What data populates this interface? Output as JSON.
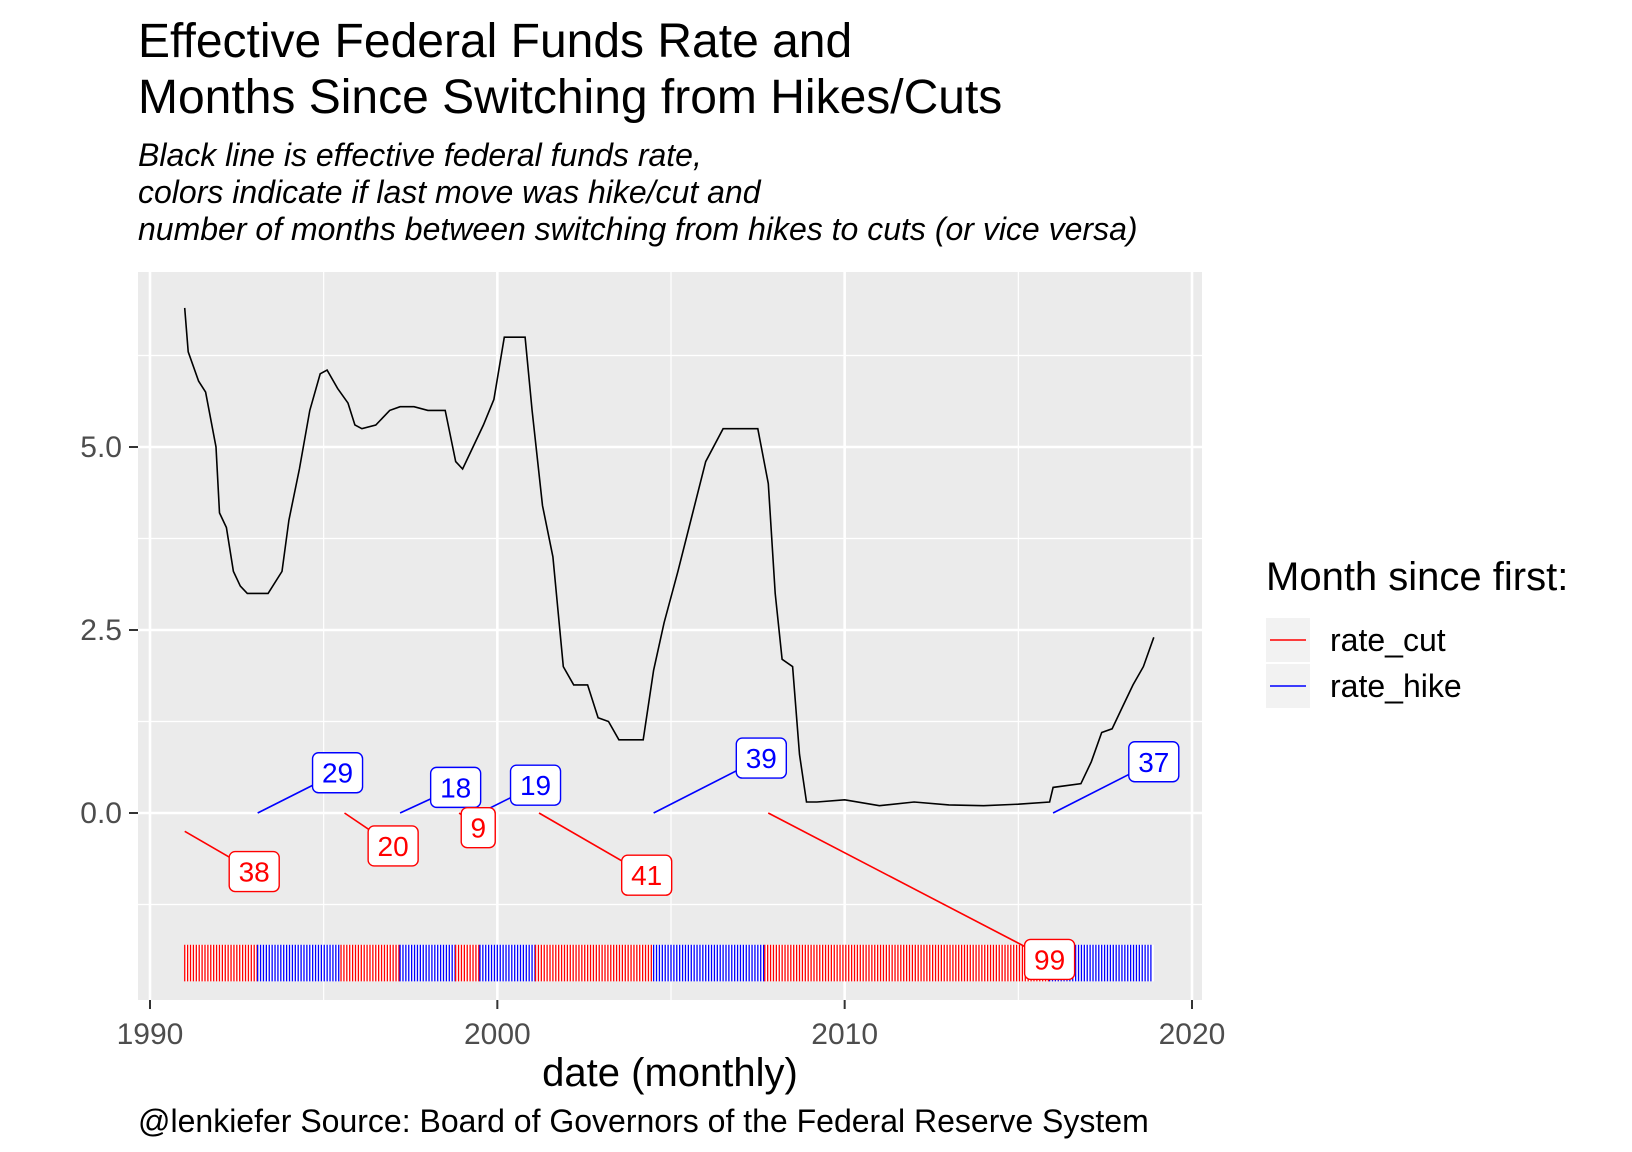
{
  "title_line1": "Effective Federal Funds Rate and",
  "title_line2": "Months Since Switching from Hikes/Cuts",
  "subtitle_line1": "Black line is effective federal funds rate,",
  "subtitle_line2": "colors indicate if last move was hike/cut and",
  "subtitle_line3": "number of months between switching from hikes to cuts (or vice versa)",
  "caption": "@lenkiefer Source: Board of Governors of the Federal Reserve System",
  "colors": {
    "panel": "#ebebeb",
    "grid": "#ffffff",
    "rate_line": "#000000",
    "rate_cut": "#ff0000",
    "rate_hike": "#0000ff"
  },
  "chart_data": {
    "type": "line",
    "xlabel": "date (monthly)",
    "ylabel": "",
    "xlim": [
      1990.0,
      2020.0
    ],
    "ylim": [
      -2.5,
      7.3
    ],
    "x_ticks": [
      1990,
      2000,
      2010,
      2020
    ],
    "x_tick_labels": [
      "1990",
      "2000",
      "2010",
      "2020"
    ],
    "y_ticks": [
      0.0,
      2.5,
      5.0
    ],
    "y_tick_labels": [
      "0.0",
      "2.5",
      "5.0"
    ],
    "grid": true,
    "legend": {
      "title": "Month since first:",
      "placement": "right",
      "entries": [
        {
          "label": "rate_cut",
          "color": "#ff0000"
        },
        {
          "label": "rate_hike",
          "color": "#0000ff"
        }
      ]
    },
    "series": [
      {
        "color": "#000000",
        "x": [
          1991.0,
          1991.1,
          1991.4,
          1991.6,
          1991.9,
          1992.0,
          1992.2,
          1992.4,
          1992.6,
          1992.8,
          1993.0,
          1993.4,
          1993.8,
          1994.0,
          1994.3,
          1994.6,
          1994.9,
          1995.1,
          1995.4,
          1995.7,
          1995.9,
          1996.1,
          1996.5,
          1996.9,
          1997.2,
          1997.6,
          1998.0,
          1998.5,
          1998.8,
          1999.0,
          1999.3,
          1999.6,
          1999.9,
          2000.2,
          2000.5,
          2000.8,
          2001.0,
          2001.3,
          2001.6,
          2001.9,
          2002.2,
          2002.6,
          2002.9,
          2003.2,
          2003.5,
          2003.8,
          2004.2,
          2004.5,
          2004.8,
          2005.2,
          2005.6,
          2006.0,
          2006.5,
          2007.0,
          2007.5,
          2007.8,
          2008.0,
          2008.2,
          2008.5,
          2008.7,
          2008.9,
          2009.2,
          2010.0,
          2011.0,
          2012.0,
          2013.0,
          2014.0,
          2015.0,
          2015.9,
          2016.0,
          2016.8,
          2017.1,
          2017.4,
          2017.7,
          2018.0,
          2018.3,
          2018.6,
          2018.9
        ],
        "values": [
          6.9,
          6.3,
          5.9,
          5.75,
          5.0,
          4.1,
          3.9,
          3.3,
          3.1,
          3.0,
          3.0,
          3.0,
          3.3,
          4.0,
          4.7,
          5.5,
          6.0,
          6.05,
          5.8,
          5.6,
          5.3,
          5.25,
          5.3,
          5.5,
          5.55,
          5.55,
          5.5,
          5.5,
          4.8,
          4.7,
          5.0,
          5.3,
          5.65,
          6.5,
          6.5,
          6.5,
          5.5,
          4.2,
          3.5,
          2.0,
          1.75,
          1.75,
          1.3,
          1.25,
          1.0,
          1.0,
          1.0,
          1.95,
          2.6,
          3.3,
          4.05,
          4.8,
          5.25,
          5.25,
          5.25,
          4.5,
          3.0,
          2.1,
          2.0,
          0.8,
          0.15,
          0.15,
          0.18,
          0.1,
          0.15,
          0.11,
          0.1,
          0.12,
          0.15,
          0.35,
          0.4,
          0.7,
          1.1,
          1.15,
          1.45,
          1.75,
          2.0,
          2.4
        ]
      }
    ],
    "regimes": [
      {
        "type": "rate_cut",
        "start": 1991.0,
        "end": 1993.1,
        "months": 38
      },
      {
        "type": "rate_hike",
        "start": 1993.1,
        "end": 1995.5,
        "months": 29
      },
      {
        "type": "rate_cut",
        "start": 1995.5,
        "end": 1997.2,
        "months": 20
      },
      {
        "type": "rate_hike",
        "start": 1997.2,
        "end": 1998.8,
        "months": 18
      },
      {
        "type": "rate_cut",
        "start": 1998.8,
        "end": 1999.5,
        "months": 9
      },
      {
        "type": "rate_hike",
        "start": 1999.5,
        "end": 2001.1,
        "months": 19
      },
      {
        "type": "rate_cut",
        "start": 2001.1,
        "end": 2004.5,
        "months": 41
      },
      {
        "type": "rate_hike",
        "start": 2004.5,
        "end": 2007.7,
        "months": 39
      },
      {
        "type": "rate_cut",
        "start": 2007.7,
        "end": 2015.9,
        "months": 99
      },
      {
        "type": "rate_hike",
        "start": 2015.9,
        "end": 2018.9,
        "months": 37
      }
    ],
    "annotations": [
      {
        "text": "38",
        "type": "rate_cut",
        "x": 1993.0,
        "y": -0.8,
        "ax": 1991.0,
        "ay": -0.25
      },
      {
        "text": "29",
        "type": "rate_hike",
        "x": 1995.4,
        "y": 0.55,
        "ax": 1993.1,
        "ay": 0.0
      },
      {
        "text": "20",
        "type": "rate_cut",
        "x": 1997.0,
        "y": -0.45,
        "ax": 1995.6,
        "ay": 0.0
      },
      {
        "text": "18",
        "type": "rate_hike",
        "x": 1998.8,
        "y": 0.35,
        "ax": 1997.2,
        "ay": 0.0
      },
      {
        "text": "9",
        "type": "rate_cut",
        "x": 1999.45,
        "y": -0.2,
        "ax": 1998.9,
        "ay": 0.0
      },
      {
        "text": "19",
        "type": "rate_hike",
        "x": 2001.1,
        "y": 0.38,
        "ax": 1999.5,
        "ay": 0.0
      },
      {
        "text": "41",
        "type": "rate_cut",
        "x": 2004.3,
        "y": -0.85,
        "ax": 2001.2,
        "ay": 0.0
      },
      {
        "text": "39",
        "type": "rate_hike",
        "x": 2007.6,
        "y": 0.75,
        "ax": 2004.5,
        "ay": 0.0
      },
      {
        "text": "99",
        "type": "rate_cut",
        "x": 2015.9,
        "y": -2.0,
        "ax": 2007.8,
        "ay": 0.0
      },
      {
        "text": "37",
        "type": "rate_hike",
        "x": 2018.9,
        "y": 0.7,
        "ax": 2016.0,
        "ay": 0.0
      }
    ]
  }
}
